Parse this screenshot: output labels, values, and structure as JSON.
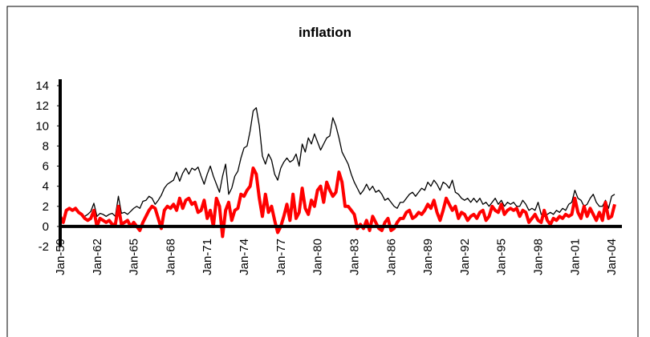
{
  "chart_data": {
    "type": "line",
    "title": "inflation",
    "categories": [
      "Jan-59",
      null,
      null,
      null,
      null,
      null,
      null,
      null,
      null,
      null,
      null,
      null,
      "Jan-62",
      null,
      null,
      null,
      null,
      null,
      null,
      null,
      null,
      null,
      null,
      null,
      "Jan-65",
      null,
      null,
      null,
      null,
      null,
      null,
      null,
      null,
      null,
      null,
      null,
      "Jan-68",
      null,
      null,
      null,
      null,
      null,
      null,
      null,
      null,
      null,
      null,
      null,
      "Jan-71",
      null,
      null,
      null,
      null,
      null,
      null,
      null,
      null,
      null,
      null,
      null,
      "Jan-74",
      null,
      null,
      null,
      null,
      null,
      null,
      null,
      null,
      null,
      null,
      null,
      "Jan-77",
      null,
      null,
      null,
      null,
      null,
      null,
      null,
      null,
      null,
      null,
      null,
      "Jan-80",
      null,
      null,
      null,
      null,
      null,
      null,
      null,
      null,
      null,
      null,
      null,
      "Jan-83",
      null,
      null,
      null,
      null,
      null,
      null,
      null,
      null,
      null,
      null,
      null,
      "Jan-86",
      null,
      null,
      null,
      null,
      null,
      null,
      null,
      null,
      null,
      null,
      null,
      "Jan-89",
      null,
      null,
      null,
      null,
      null,
      null,
      null,
      null,
      null,
      null,
      null,
      "Jan-92",
      null,
      null,
      null,
      null,
      null,
      null,
      null,
      null,
      null,
      null,
      null,
      "Jan-95",
      null,
      null,
      null,
      null,
      null,
      null,
      null,
      null,
      null,
      null,
      null,
      "Jan-98",
      null,
      null,
      null,
      null,
      null,
      null,
      null,
      null,
      null,
      null,
      null,
      "Jan-01",
      null,
      null,
      null,
      null,
      null,
      null,
      null,
      null,
      null,
      null,
      null,
      "Jan-04",
      null
    ],
    "series": [
      {
        "color": "#000000",
        "width": 1.3,
        "values": [
          1,
          0.5,
          1.5,
          1.8,
          1.7,
          1.6,
          1.4,
          1.2,
          1.0,
          1.2,
          1.5,
          2.3,
          1.0,
          1.3,
          1.2,
          1.0,
          1.2,
          1.3,
          1.0,
          3.0,
          1.3,
          1.4,
          1.2,
          1.5,
          1.8,
          2.0,
          1.8,
          2.5,
          2.6,
          3.0,
          2.8,
          2.2,
          2.6,
          3.1,
          3.8,
          4.2,
          4.4,
          4.6,
          5.4,
          4.5,
          5.3,
          5.8,
          5.2,
          5.8,
          5.6,
          5.9,
          5.0,
          4.2,
          5.2,
          6.0,
          5.0,
          4.2,
          3.4,
          5.0,
          6.2,
          3.2,
          3.8,
          5.0,
          5.5,
          6.8,
          7.8,
          8.0,
          9.5,
          11.5,
          11.8,
          10.0,
          7.0,
          6.2,
          7.2,
          6.6,
          5.2,
          4.6,
          5.8,
          6.4,
          6.8,
          6.4,
          6.6,
          7.2,
          6.0,
          8.2,
          7.4,
          8.8,
          8.2,
          9.2,
          8.4,
          7.6,
          8.2,
          8.8,
          9.0,
          10.8,
          10.0,
          8.8,
          7.4,
          6.8,
          6.2,
          5.2,
          4.4,
          3.8,
          3.2,
          3.6,
          4.2,
          3.6,
          4.0,
          3.4,
          3.6,
          3.2,
          2.6,
          2.8,
          2.4,
          2.0,
          1.8,
          2.4,
          2.4,
          2.8,
          3.2,
          3.4,
          3.0,
          3.4,
          3.8,
          3.6,
          4.4,
          4.0,
          4.6,
          4.2,
          3.6,
          4.4,
          4.2,
          3.8,
          4.6,
          3.4,
          3.2,
          2.8,
          2.6,
          2.8,
          2.4,
          2.8,
          2.4,
          2.8,
          2.2,
          2.4,
          2.0,
          2.4,
          2.8,
          2.2,
          2.6,
          2.0,
          2.4,
          2.2,
          2.4,
          2.0,
          2.0,
          2.6,
          2.2,
          1.6,
          1.8,
          1.6,
          2.4,
          1.2,
          1.0,
          1.2,
          1.4,
          1.2,
          1.6,
          1.4,
          1.8,
          1.6,
          2.2,
          2.4,
          3.6,
          2.8,
          2.6,
          2.0,
          2.2,
          2.8,
          3.2,
          2.4,
          2.0,
          2.0,
          2.6,
          1.8,
          3.0,
          3.2
        ]
      },
      {
        "color": "#ff0000",
        "width": 4,
        "values": [
          1.0,
          0.4,
          1.6,
          1.8,
          1.6,
          1.8,
          1.4,
          1.2,
          0.8,
          0.6,
          0.8,
          1.6,
          0,
          0.8,
          0.6,
          0.4,
          0.6,
          0.2,
          0.2,
          2.0,
          0.2,
          0.4,
          0.6,
          0,
          0.4,
          0,
          -0.4,
          0.4,
          1.0,
          1.6,
          2.0,
          1.8,
          0.8,
          -0.2,
          1.6,
          2.0,
          1.8,
          2.2,
          1.6,
          2.8,
          1.8,
          2.6,
          2.8,
          2.2,
          2.4,
          1.4,
          1.6,
          2.6,
          0.8,
          1.6,
          0.0,
          2.8,
          2.0,
          -1.0,
          1.6,
          2.4,
          0.6,
          1.6,
          1.8,
          3.2,
          3.0,
          3.6,
          4.0,
          5.8,
          5.2,
          2.8,
          1.0,
          3.2,
          1.4,
          2.0,
          0.6,
          -0.6,
          0.0,
          1.0,
          2.2,
          0.6,
          3.2,
          0.8,
          1.4,
          3.8,
          1.8,
          1.2,
          2.6,
          2.0,
          3.6,
          4.0,
          2.4,
          4.4,
          3.6,
          3.0,
          3.4,
          5.4,
          4.4,
          2.0,
          2.0,
          1.6,
          1.2,
          -0.2,
          0.2,
          -0.2,
          0.6,
          -0.4,
          1.0,
          0.4,
          -0.2,
          -0.4,
          0.4,
          0.8,
          -0.4,
          -0.2,
          0.4,
          0.8,
          0.8,
          1.4,
          1.6,
          0.8,
          1.0,
          1.4,
          1.2,
          1.6,
          2.2,
          1.8,
          2.6,
          1.4,
          0.6,
          1.6,
          2.8,
          2.2,
          1.6,
          2.0,
          0.8,
          1.4,
          1.2,
          0.6,
          1.0,
          1.2,
          0.8,
          1.4,
          1.6,
          0.6,
          1.0,
          2.0,
          1.6,
          1.4,
          2.2,
          1.2,
          1.6,
          1.8,
          1.6,
          1.8,
          1.0,
          1.6,
          1.4,
          0.4,
          0.8,
          1.2,
          0.6,
          0.4,
          1.6,
          0.6,
          0.2,
          0.8,
          0.6,
          1.0,
          0.8,
          1.2,
          1.0,
          1.2,
          2.8,
          1.4,
          0.8,
          2.0,
          1.0,
          1.8,
          1.2,
          0.6,
          1.4,
          0.6,
          2.4,
          0.8,
          1.0,
          2.2
        ]
      }
    ],
    "ylim": [
      -2,
      14
    ],
    "yticks": [
      -2,
      0,
      2,
      4,
      6,
      8,
      10,
      12,
      14
    ]
  }
}
